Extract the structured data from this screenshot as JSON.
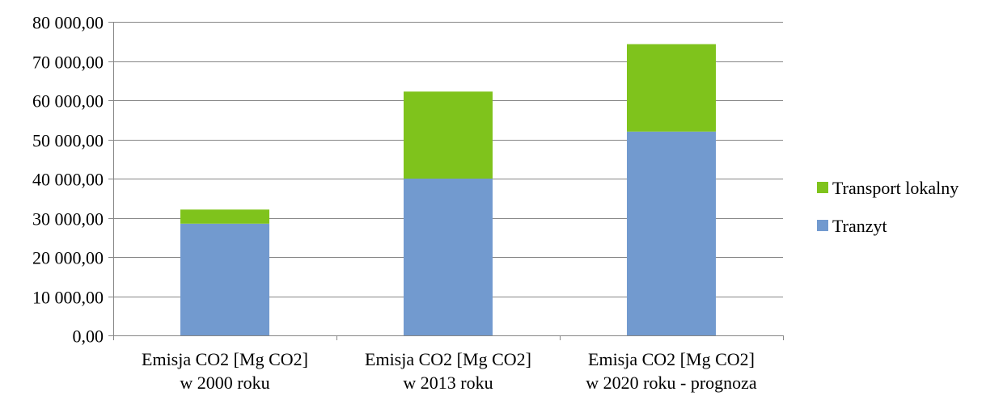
{
  "chart_data": {
    "type": "bar",
    "stacked": true,
    "categories": [
      [
        "Emisja CO2 [Mg CO2]",
        "w 2000 roku"
      ],
      [
        "Emisja CO2 [Mg CO2]",
        "w 2013 roku"
      ],
      [
        "Emisja CO2 [Mg CO2]",
        "w 2020 roku - prognoza"
      ]
    ],
    "series": [
      {
        "name": "Tranzyt",
        "values": [
          28500,
          40000,
          52000
        ],
        "color": "#729ACF"
      },
      {
        "name": "Transport lokalny",
        "values": [
          3600,
          22200,
          22300
        ],
        "color": "#7FC31C"
      }
    ],
    "ylim": [
      0,
      80000
    ],
    "ytick_step": 10000,
    "ytick_labels": [
      "0,00",
      "10 000,00",
      "20 000,00",
      "30 000,00",
      "40 000,00",
      "50 000,00",
      "60 000,00",
      "70 000,00",
      "80 000,00"
    ],
    "legend": {
      "placement": "right",
      "order": [
        "Transport lokalny",
        "Tranzyt"
      ]
    },
    "grid": true,
    "gridline_color": "#868686",
    "title": "",
    "xlabel": "",
    "ylabel": ""
  }
}
